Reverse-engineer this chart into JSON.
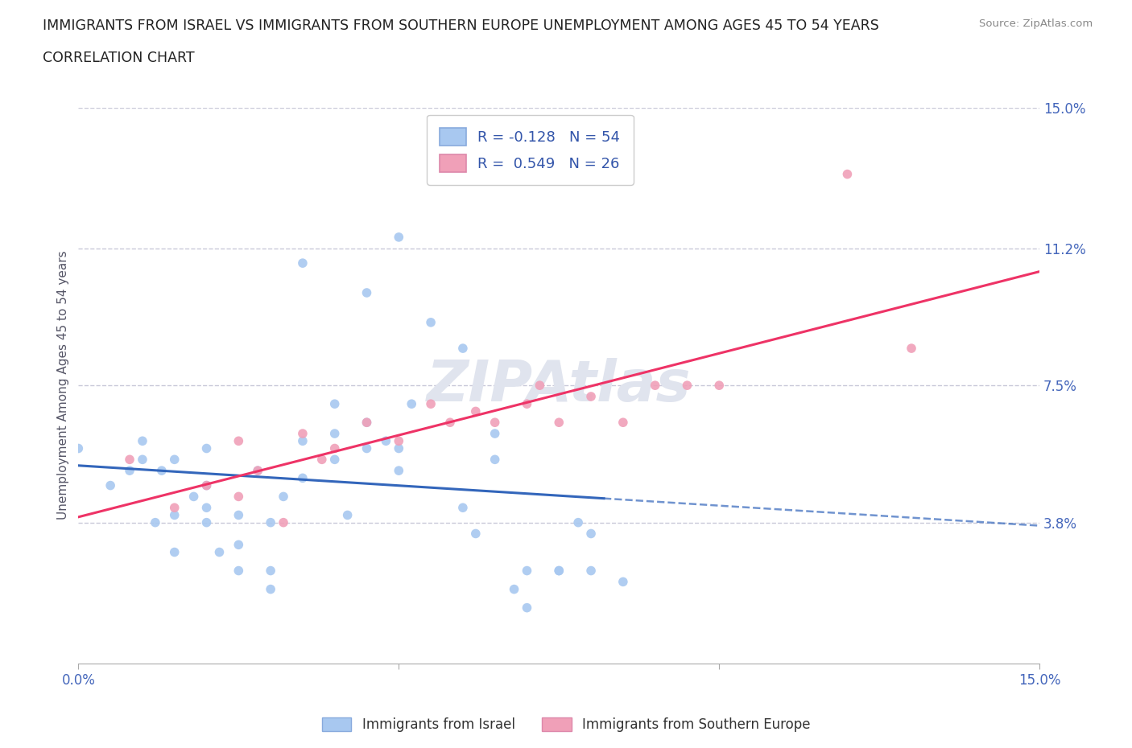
{
  "title_line1": "IMMIGRANTS FROM ISRAEL VS IMMIGRANTS FROM SOUTHERN EUROPE UNEMPLOYMENT AMONG AGES 45 TO 54 YEARS",
  "title_line2": "CORRELATION CHART",
  "source": "Source: ZipAtlas.com",
  "ylabel": "Unemployment Among Ages 45 to 54 years",
  "xlim": [
    0,
    0.15
  ],
  "ylim": [
    0,
    0.15
  ],
  "yticks": [
    0.038,
    0.075,
    0.112,
    0.15
  ],
  "ytick_labels": [
    "3.8%",
    "7.5%",
    "11.2%",
    "15.0%"
  ],
  "xticks": [
    0.0,
    0.05,
    0.1,
    0.15
  ],
  "xtick_labels": [
    "0.0%",
    "",
    "",
    "15.0%"
  ],
  "legend_r1": "R = -0.128   N = 54",
  "legend_r2": "R =  0.549   N = 26",
  "color_israel": "#a8c8f0",
  "color_south_europe": "#f0a0b8",
  "trend_color_israel": "#3366bb",
  "trend_color_south_europe": "#ee3366",
  "israel_x": [
    0.0,
    0.005,
    0.008,
    0.01,
    0.01,
    0.012,
    0.013,
    0.015,
    0.015,
    0.015,
    0.018,
    0.02,
    0.02,
    0.02,
    0.02,
    0.022,
    0.025,
    0.025,
    0.025,
    0.028,
    0.03,
    0.03,
    0.03,
    0.032,
    0.035,
    0.035,
    0.04,
    0.04,
    0.04,
    0.042,
    0.045,
    0.045,
    0.048,
    0.05,
    0.05,
    0.052,
    0.055,
    0.06,
    0.062,
    0.065,
    0.065,
    0.068,
    0.07,
    0.07,
    0.075,
    0.078,
    0.08,
    0.08,
    0.035,
    0.045,
    0.05,
    0.06,
    0.075,
    0.085
  ],
  "israel_y": [
    0.058,
    0.048,
    0.052,
    0.055,
    0.06,
    0.038,
    0.052,
    0.03,
    0.04,
    0.055,
    0.045,
    0.038,
    0.042,
    0.048,
    0.058,
    0.03,
    0.025,
    0.032,
    0.04,
    0.052,
    0.02,
    0.025,
    0.038,
    0.045,
    0.05,
    0.06,
    0.055,
    0.062,
    0.07,
    0.04,
    0.058,
    0.065,
    0.06,
    0.052,
    0.058,
    0.07,
    0.092,
    0.042,
    0.035,
    0.055,
    0.062,
    0.02,
    0.015,
    0.025,
    0.025,
    0.038,
    0.025,
    0.035,
    0.108,
    0.1,
    0.115,
    0.085,
    0.025,
    0.022
  ],
  "south_europe_x": [
    0.008,
    0.015,
    0.02,
    0.025,
    0.025,
    0.028,
    0.032,
    0.035,
    0.038,
    0.04,
    0.045,
    0.05,
    0.055,
    0.058,
    0.062,
    0.065,
    0.07,
    0.072,
    0.075,
    0.08,
    0.085,
    0.09,
    0.095,
    0.1,
    0.12,
    0.13
  ],
  "south_europe_y": [
    0.055,
    0.042,
    0.048,
    0.06,
    0.045,
    0.052,
    0.038,
    0.062,
    0.055,
    0.058,
    0.065,
    0.06,
    0.07,
    0.065,
    0.068,
    0.065,
    0.07,
    0.075,
    0.065,
    0.072,
    0.065,
    0.075,
    0.075,
    0.075,
    0.132,
    0.085
  ],
  "background_color": "#ffffff",
  "grid_color": "#c8c8d8",
  "title_color": "#222222",
  "axis_label_color": "#4466bb",
  "source_color": "#888888",
  "watermark_color": "#e0e4ee",
  "israel_trend_solid_end": 0.082,
  "south_trend_start": 0.0,
  "south_trend_end": 0.15
}
